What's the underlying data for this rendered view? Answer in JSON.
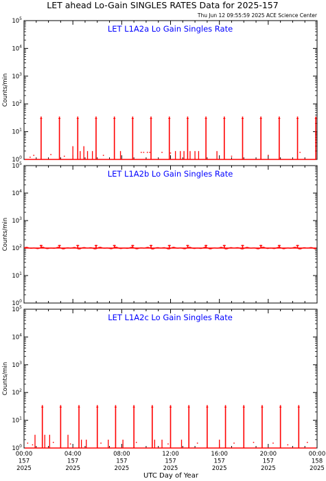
{
  "title": "LET ahead Lo-Gain SINGLES RATES Data for 2025-157",
  "timestamp": "Thu Jun 12 09:55:59 2025 ACE Science Center",
  "x_axis_label": "UTC Day of Year",
  "y_axis_label": "Counts/min",
  "colors": {
    "trace": "#ff0000",
    "panel_title": "#0000ff",
    "axes": "#000000"
  },
  "chart_data": [
    {
      "type": "line",
      "title": "LET L1A2a Lo Gain Singles Rate",
      "ylabel": "Counts/min",
      "xlabel": "UTC Day of Year",
      "yscale": "log",
      "ylim": [
        1,
        100000
      ],
      "xlim_hours": [
        0,
        24
      ],
      "baseline": 1,
      "spike_peak": 35,
      "spikes_hours": [
        1.4,
        2.9,
        4.4,
        5.9,
        7.4,
        8.9,
        10.4,
        11.9,
        13.4,
        14.9,
        16.4,
        17.9,
        19.4,
        20.9,
        22.4,
        23.9
      ],
      "minor_spikes": [
        [
          4.0,
          3
        ],
        [
          4.6,
          2
        ],
        [
          4.9,
          3
        ],
        [
          5.2,
          2
        ],
        [
          5.6,
          2
        ],
        [
          7.9,
          2
        ],
        [
          12.4,
          2
        ],
        [
          12.8,
          2
        ],
        [
          13.1,
          2
        ],
        [
          13.6,
          2
        ],
        [
          14.0,
          2
        ],
        [
          14.3,
          2
        ],
        [
          15.8,
          2
        ]
      ],
      "dots": [
        [
          0.5,
          1.2
        ],
        [
          0.8,
          1.4
        ],
        [
          2.2,
          1.5
        ],
        [
          3.3,
          1.3
        ],
        [
          6.5,
          1.4
        ],
        [
          9.6,
          1.8
        ],
        [
          9.8,
          1.8
        ],
        [
          10.1,
          1.8
        ],
        [
          10.3,
          1.8
        ],
        [
          11.3,
          1.8
        ],
        [
          12.0,
          1.7
        ],
        [
          17.0,
          1.3
        ],
        [
          20.0,
          1.4
        ],
        [
          22.6,
          1.8
        ]
      ]
    },
    {
      "type": "line",
      "title": "LET L1A2b Lo Gain Singles Rate",
      "ylabel": "Counts/min",
      "xlabel": "UTC Day of Year",
      "yscale": "log",
      "ylim": [
        1,
        100000
      ],
      "xlim_hours": [
        0,
        24
      ],
      "baseline": 100,
      "spike_peak": 130,
      "spikes_hours": [
        1.4,
        2.9,
        4.4,
        5.9,
        7.4,
        8.9,
        10.4,
        11.9,
        13.4,
        14.9,
        16.4,
        17.9,
        19.4,
        20.9,
        22.4
      ],
      "minor_spikes": [],
      "dots": []
    },
    {
      "type": "line",
      "title": "LET L1A2c Lo Gain Singles Rate",
      "ylabel": "Counts/min",
      "xlabel": "UTC Day of Year",
      "yscale": "log",
      "ylim": [
        1,
        100000
      ],
      "xlim_hours": [
        0,
        24
      ],
      "baseline": 1,
      "spike_peak": 35,
      "spikes_hours": [
        1.5,
        3.0,
        4.5,
        6.0,
        7.5,
        9.0,
        10.5,
        12.0,
        13.5,
        15.0,
        16.5,
        18.0,
        19.5,
        21.0,
        22.5
      ],
      "minor_spikes": [
        [
          0.9,
          3
        ],
        [
          1.7,
          3
        ],
        [
          2.1,
          3
        ],
        [
          3.6,
          3
        ],
        [
          4.7,
          2
        ],
        [
          5.1,
          2
        ],
        [
          6.9,
          2
        ],
        [
          8.1,
          2
        ],
        [
          10.7,
          2
        ],
        [
          11.3,
          2
        ],
        [
          12.9,
          2
        ],
        [
          16.0,
          2
        ]
      ],
      "dots": [
        [
          0.3,
          1.5
        ],
        [
          0.7,
          1.3
        ],
        [
          2.4,
          1.6
        ],
        [
          3.8,
          1.4
        ],
        [
          6.3,
          1.5
        ],
        [
          9.2,
          1.6
        ],
        [
          11.8,
          1.4
        ],
        [
          14.2,
          1.5
        ],
        [
          17.2,
          1.5
        ],
        [
          18.8,
          1.6
        ],
        [
          20.4,
          1.5
        ],
        [
          21.6,
          1.3
        ],
        [
          23.2,
          1.6
        ]
      ]
    }
  ],
  "x_ticks": [
    {
      "time": "00:00",
      "doy": "157",
      "year": "2025"
    },
    {
      "time": "04:00",
      "doy": "157",
      "year": "2025"
    },
    {
      "time": "08:00",
      "doy": "157",
      "year": "2025"
    },
    {
      "time": "12:00",
      "doy": "157",
      "year": "2025"
    },
    {
      "time": "16:00",
      "doy": "157",
      "year": "2025"
    },
    {
      "time": "20:00",
      "doy": "157",
      "year": "2025"
    },
    {
      "time": "00:00",
      "doy": "158",
      "year": "2025"
    }
  ]
}
